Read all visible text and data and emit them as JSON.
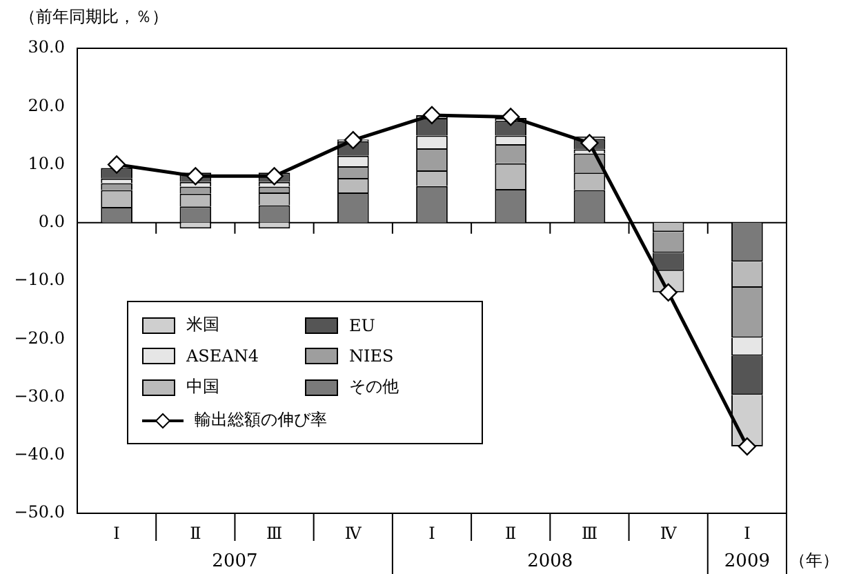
{
  "chart_data": {
    "type": "bar",
    "stacked": true,
    "ylabel": "（前年同期比，％）",
    "xlabel": "（年）",
    "categories": [
      "Ⅰ",
      "Ⅱ",
      "Ⅲ",
      "Ⅳ",
      "Ⅰ",
      "Ⅱ",
      "Ⅲ",
      "Ⅳ",
      "Ⅰ"
    ],
    "annotations": [
      "2007",
      "2008",
      "2009"
    ],
    "ylim": [
      -50,
      30
    ],
    "yticks": [
      {
        "value": -50,
        "label": "−50.0"
      },
      {
        "value": -40,
        "label": "−40.0"
      },
      {
        "value": -30,
        "label": "−30.0"
      },
      {
        "value": -20,
        "label": "−20.0"
      },
      {
        "value": -10,
        "label": "−10.0"
      },
      {
        "value": 0,
        "label": "0.0"
      },
      {
        "value": 10,
        "label": "10.0"
      },
      {
        "value": 20,
        "label": "20.0"
      },
      {
        "value": 30,
        "label": "30.0"
      }
    ],
    "grid": false,
    "legend": "bottom left",
    "ref_lines": [
      {
        "axis": "y",
        "value": 0,
        "color": "#000000"
      }
    ],
    "series": [
      {
        "name": "その他",
        "color": "#7a7a7a",
        "values": [
          2.7,
          2.8,
          3.0,
          5.2,
          6.3,
          5.8,
          5.6,
          null,
          -6.7
        ]
      },
      {
        "name": "中国",
        "color": "#bababa",
        "values": [
          2.9,
          2.2,
          2.2,
          2.5,
          2.7,
          4.4,
          3.0,
          -1.6,
          -4.5
        ]
      },
      {
        "name": "NIES",
        "color": "#9e9e9e",
        "values": [
          1.2,
          1.2,
          1.0,
          2.0,
          3.8,
          3.3,
          3.3,
          -3.6,
          -8.6
        ]
      },
      {
        "name": "ASEAN4",
        "color": "#e6e6e6",
        "values": [
          0.8,
          0.8,
          0.8,
          1.8,
          2.2,
          1.5,
          0.7,
          null,
          -3.1
        ]
      },
      {
        "name": "EU",
        "color": "#555555",
        "values": [
          1.8,
          1.6,
          1.6,
          2.5,
          3.0,
          2.5,
          1.8,
          -3.1,
          -6.7
        ]
      },
      {
        "name": "米国",
        "color": "#cfcfcf",
        "values": [
          null,
          -1.0,
          -1.0,
          0.3,
          0.5,
          0.5,
          0.4,
          -3.7,
          -8.9
        ]
      },
      {
        "name": "輸出総額の伸び率",
        "type": "line",
        "color": "#000000",
        "marker": "diamond",
        "line_style": "solid",
        "values": [
          10.0,
          8.0,
          8.0,
          14.2,
          18.5,
          18.2,
          13.7,
          -12.0,
          -38.5
        ]
      }
    ]
  }
}
